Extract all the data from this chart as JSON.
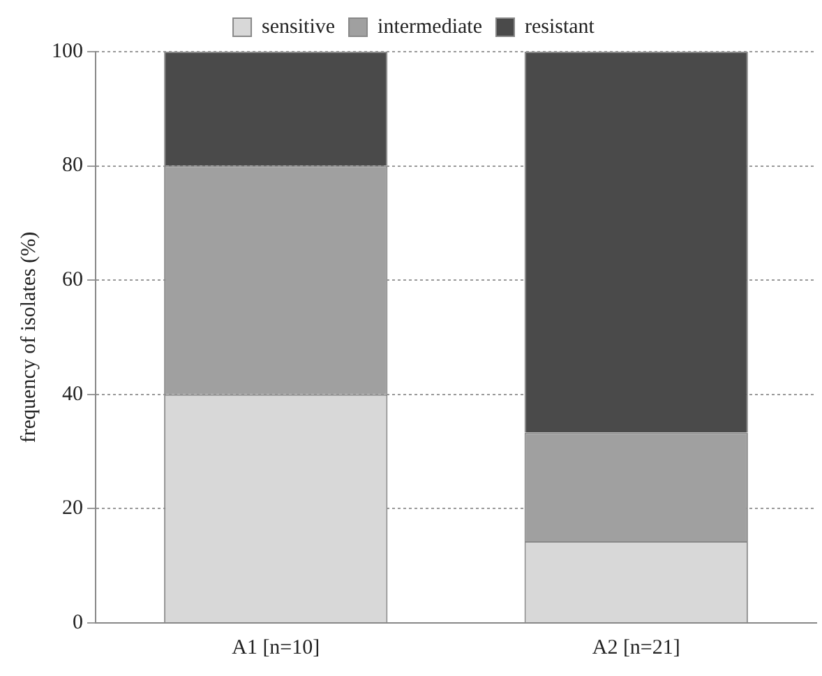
{
  "chart_data": {
    "type": "bar",
    "stacked": true,
    "ylabel": "frequency of isolates (%)",
    "categories": [
      "A1 [n=10]",
      "A2 [n=21]"
    ],
    "series": [
      {
        "name": "sensitive",
        "color": "#d8d8d8",
        "values": [
          40,
          14.3
        ]
      },
      {
        "name": "intermediate",
        "color": "#a0a0a0",
        "values": [
          40,
          19
        ]
      },
      {
        "name": "resistant",
        "color": "#4a4a4a",
        "values": [
          20,
          66.7
        ]
      }
    ],
    "ylim": [
      0,
      100
    ],
    "yticks": [
      0,
      20,
      40,
      60,
      80,
      100
    ],
    "grid": "y",
    "legend": "top"
  }
}
